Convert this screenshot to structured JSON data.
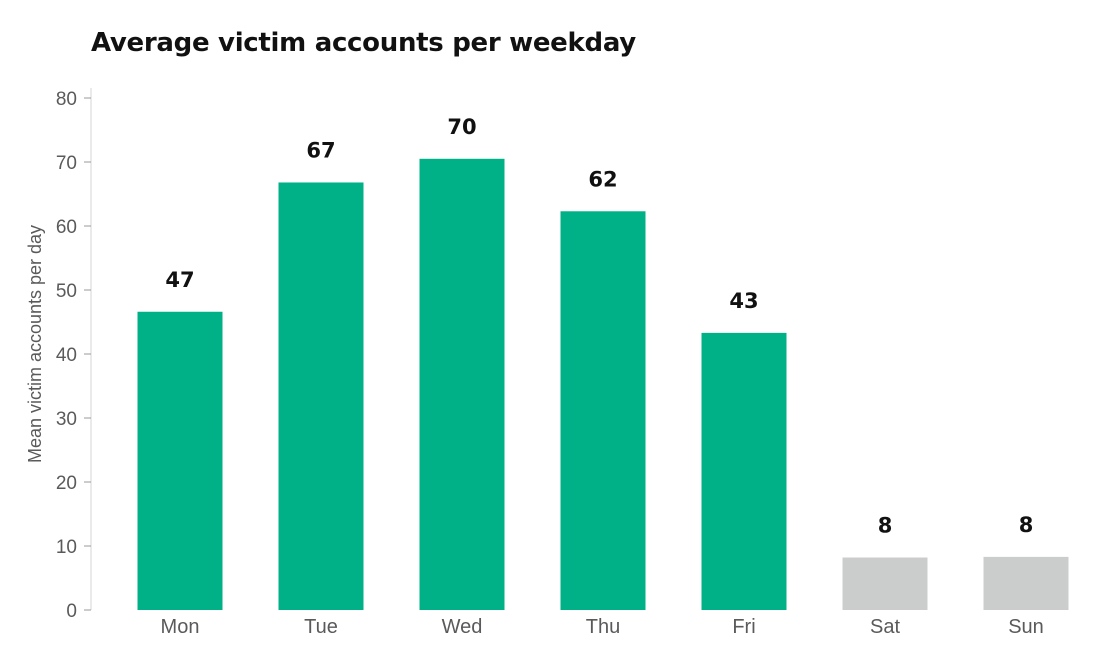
{
  "chart_data": {
    "type": "bar",
    "title": "Average victim accounts per weekday",
    "xlabel": "",
    "ylabel": "Mean victim accounts per day",
    "ylim": [
      0,
      80
    ],
    "yticks": [
      0,
      10,
      20,
      30,
      40,
      50,
      60,
      70,
      80
    ],
    "categories": [
      "Mon",
      "Tue",
      "Wed",
      "Thu",
      "Fri",
      "Sat",
      "Sun"
    ],
    "values": [
      46.6,
      66.8,
      70.5,
      62.3,
      43.3,
      8.2,
      8.3
    ],
    "data_labels": [
      "47",
      "67",
      "70",
      "62",
      "43",
      "8",
      "8"
    ],
    "bar_colors": [
      "#00b087",
      "#00b087",
      "#00b087",
      "#00b087",
      "#00b087",
      "#cbcdcc",
      "#cbcdcc"
    ],
    "grid": false,
    "legend": "none"
  }
}
